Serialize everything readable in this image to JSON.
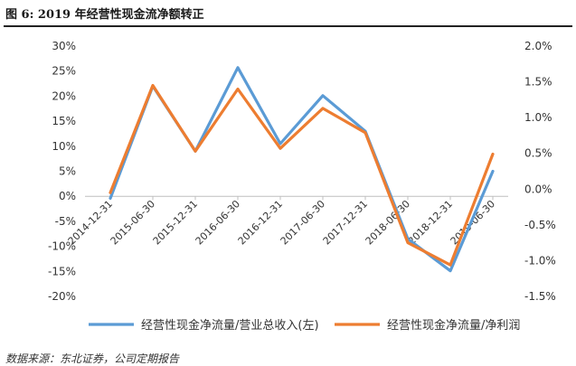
{
  "figure": {
    "title": "图 6:  2019 年经营性现金流净额转正",
    "source": "数据来源：东北证券，公司定期报告"
  },
  "chart_data": {
    "type": "line",
    "categories": [
      "2014-12-31",
      "2015-06-30",
      "2015-12-31",
      "2016-06-30",
      "2016-12-31",
      "2017-06-30",
      "2017-12-31",
      "2018-06-30",
      "2018-12-31",
      "2019-06-30"
    ],
    "y_left": {
      "min": -0.2,
      "max": 0.3,
      "step": 0.05,
      "ticks": [
        "30%",
        "25%",
        "20%",
        "15%",
        "10%",
        "5%",
        "0%",
        "-5%",
        "-10%",
        "-15%",
        "-20%"
      ]
    },
    "y_right": {
      "min": -0.015,
      "max": 0.02,
      "step": 0.005,
      "ticks": [
        "2.0%",
        "1.5%",
        "1.0%",
        "0.5%",
        "0.0%",
        "-0.5%",
        "-1.0%",
        "-1.5%"
      ]
    },
    "grid": false,
    "legend": "bottom",
    "series": [
      {
        "name": "经营性现金净流量/营业总收入(左)",
        "axis": "left",
        "color": "#5b9bd5",
        "values": [
          -0.004,
          0.22,
          0.09,
          0.257,
          0.105,
          0.201,
          0.13,
          -0.085,
          -0.149,
          0.05
        ]
      },
      {
        "name": "经营性现金净流量/净利润",
        "axis": "right",
        "color": "#ed7d31",
        "values": [
          -0.0005,
          0.0145,
          0.0053,
          0.014,
          0.0057,
          0.0113,
          0.0079,
          -0.0075,
          -0.0106,
          0.0049
        ]
      }
    ]
  }
}
